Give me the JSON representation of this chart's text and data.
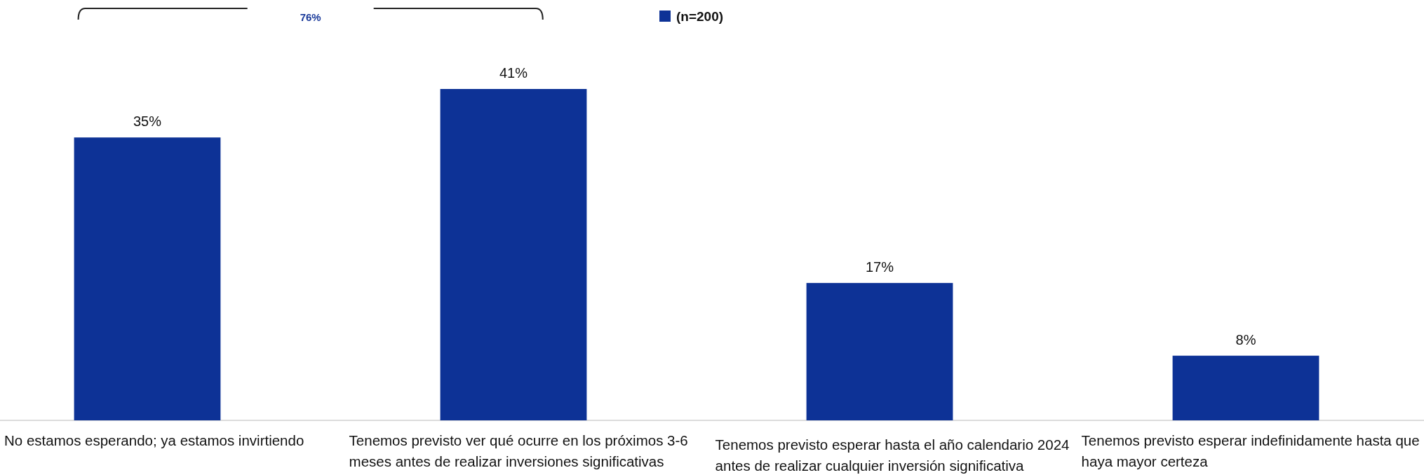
{
  "chart_data": {
    "type": "bar",
    "categories": [
      "No estamos esperando; ya estamos invirtiendo",
      "Tenemos previsto ver qué ocurre en los próximos 3-6 meses antes de realizar inversiones significativas",
      "Tenemos previsto esperar hasta el año calendario 2024 antes de realizar cualquier inversión significativa",
      "Tenemos previsto esperar indefinidamente hasta que haya mayor certeza"
    ],
    "series": [
      {
        "name": "(n=200)",
        "color": "#0d3296",
        "values": [
          35,
          41,
          17,
          8
        ],
        "value_labels": [
          "35%",
          "41%",
          "17%",
          "8%"
        ]
      }
    ],
    "legend": "top",
    "annotations": [
      "76%"
    ]
  }
}
